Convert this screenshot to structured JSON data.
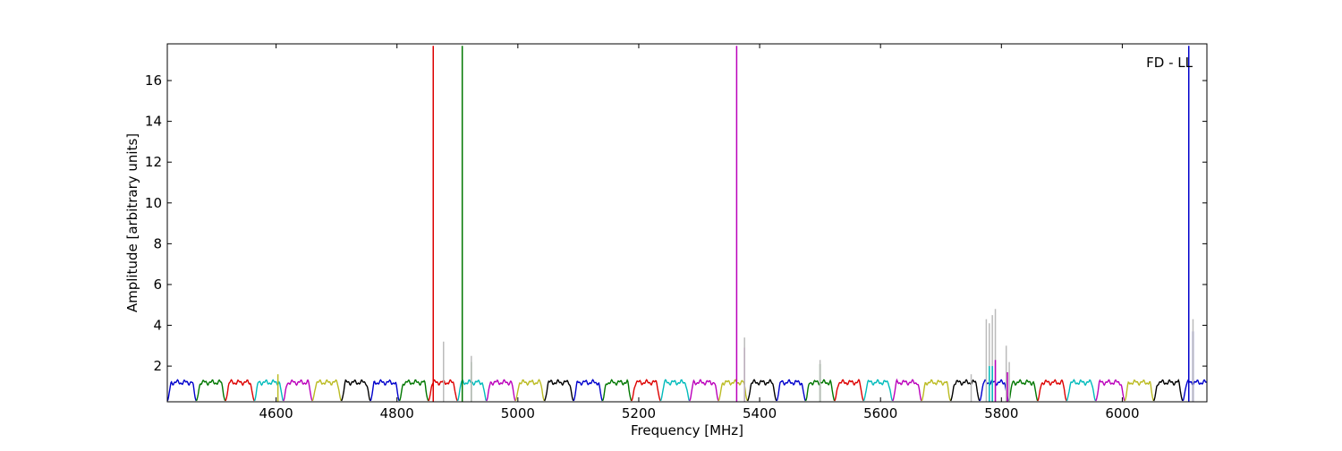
{
  "chart_data": {
    "type": "line",
    "annotation": "FD - LL",
    "xlabel": "Frequency [MHz]",
    "ylabel": "Amplitude [arbitrary units]",
    "xlim": [
      4420,
      6140
    ],
    "ylim": [
      0.25,
      17.8
    ],
    "xticks": [
      4600,
      4800,
      5000,
      5200,
      5400,
      5600,
      5800,
      6000
    ],
    "yticks": [
      2,
      4,
      6,
      8,
      10,
      12,
      14,
      16
    ],
    "xtick_labels": [
      "4600",
      "4800",
      "5000",
      "5200",
      "5400",
      "5600",
      "5800",
      "6000"
    ],
    "ytick_labels": [
      "2",
      "4",
      "6",
      "8",
      "10",
      "12",
      "14",
      "16"
    ],
    "grid": false,
    "legend": "none",
    "colors": {
      "blue": "#0000cc",
      "green": "#007700",
      "red": "#dd0000",
      "cyan": "#00bbbb",
      "magenta": "#bb00bb",
      "olive": "#bbbb22",
      "black": "#000000",
      "gray": "#bbbbbb"
    },
    "band_cycle": [
      "blue",
      "green",
      "red",
      "cyan",
      "magenta",
      "olive",
      "black"
    ],
    "band": {
      "start": 4420,
      "width": 48,
      "level": 1.2,
      "base": 0.3
    },
    "spikes": [
      {
        "x": 4860,
        "y": 17.7,
        "color": "red"
      },
      {
        "x": 4877,
        "y": 2.6,
        "color": "red"
      },
      {
        "x": 4877,
        "y": 3.2,
        "color": "gray"
      },
      {
        "x": 4908,
        "y": 17.7,
        "color": "green"
      },
      {
        "x": 4923,
        "y": 2.2,
        "color": "green"
      },
      {
        "x": 4923,
        "y": 2.5,
        "color": "gray"
      },
      {
        "x": 4603,
        "y": 1.6,
        "color": "olive"
      },
      {
        "x": 5362,
        "y": 17.7,
        "color": "magenta"
      },
      {
        "x": 5375,
        "y": 2.9,
        "color": "magenta"
      },
      {
        "x": 5375,
        "y": 3.4,
        "color": "gray"
      },
      {
        "x": 5500,
        "y": 2.1,
        "color": "green"
      },
      {
        "x": 5500,
        "y": 2.3,
        "color": "gray"
      },
      {
        "x": 5775,
        "y": 4.3,
        "color": "gray"
      },
      {
        "x": 5780,
        "y": 4.1,
        "color": "gray"
      },
      {
        "x": 5785,
        "y": 4.5,
        "color": "gray"
      },
      {
        "x": 5790,
        "y": 4.8,
        "color": "gray"
      },
      {
        "x": 5808,
        "y": 3.0,
        "color": "gray"
      },
      {
        "x": 5813,
        "y": 2.2,
        "color": "gray"
      },
      {
        "x": 5780,
        "y": 2.0,
        "color": "cyan"
      },
      {
        "x": 5785,
        "y": 2.0,
        "color": "cyan"
      },
      {
        "x": 5790,
        "y": 2.3,
        "color": "magenta"
      },
      {
        "x": 5810,
        "y": 1.7,
        "color": "magenta"
      },
      {
        "x": 5750,
        "y": 1.6,
        "color": "gray"
      },
      {
        "x": 6110,
        "y": 17.7,
        "color": "blue"
      },
      {
        "x": 6117,
        "y": 3.7,
        "color": "blue"
      },
      {
        "x": 6117,
        "y": 4.3,
        "color": "gray"
      }
    ]
  }
}
